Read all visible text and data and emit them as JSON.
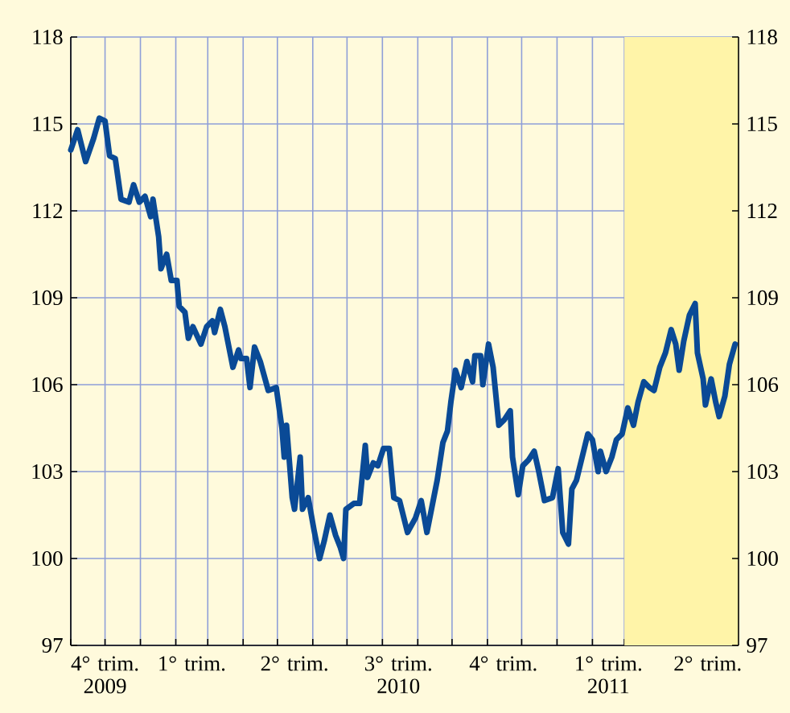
{
  "chart_data": {
    "type": "line",
    "color": "#0a4a96",
    "x": [
      "2009-11-01",
      "2009-11-07",
      "2009-11-14",
      "2009-11-21",
      "2009-11-26",
      "2009-12-01",
      "2009-12-05",
      "2009-12-10",
      "2009-12-15",
      "2009-12-22",
      "2009-12-26",
      "2009-12-31",
      "2010-01-05",
      "2010-01-10",
      "2010-01-12",
      "2010-01-17",
      "2010-01-19",
      "2010-01-24",
      "2010-01-28",
      "2010-02-02",
      "2010-02-04",
      "2010-02-09",
      "2010-02-12",
      "2010-02-16",
      "2010-02-23",
      "2010-02-28",
      "2010-03-05",
      "2010-03-07",
      "2010-03-12",
      "2010-03-16",
      "2010-03-23",
      "2010-03-28",
      "2010-03-30",
      "2010-04-04",
      "2010-04-07",
      "2010-04-11",
      "2010-04-16",
      "2010-04-23",
      "2010-04-30",
      "2010-05-05",
      "2010-05-07",
      "2010-05-09",
      "2010-05-14",
      "2010-05-16",
      "2010-05-21",
      "2010-05-23",
      "2010-05-28",
      "2010-06-02",
      "2010-06-07",
      "2010-06-11",
      "2010-06-16",
      "2010-06-21",
      "2010-06-25",
      "2010-06-28",
      "2010-06-30",
      "2010-07-07",
      "2010-07-12",
      "2010-07-17",
      "2010-07-19",
      "2010-07-24",
      "2010-07-28",
      "2010-08-02",
      "2010-08-07",
      "2010-08-11",
      "2010-08-16",
      "2010-08-23",
      "2010-08-30",
      "2010-09-04",
      "2010-09-09",
      "2010-09-13",
      "2010-09-18",
      "2010-09-23",
      "2010-09-27",
      "2010-09-30",
      "2010-10-04",
      "2010-10-09",
      "2010-10-14",
      "2010-10-19",
      "2010-10-21",
      "2010-10-26",
      "2010-10-28",
      "2010-11-02",
      "2010-11-06",
      "2010-11-11",
      "2010-11-16",
      "2010-11-21",
      "2010-11-23",
      "2010-11-28",
      "2010-12-02",
      "2010-12-07",
      "2010-12-12",
      "2010-12-16",
      "2010-12-21",
      "2010-12-28",
      "2011-01-02",
      "2011-01-06",
      "2011-01-11",
      "2011-01-14",
      "2011-01-18",
      "2011-01-23",
      "2011-01-28",
      "2011-02-01",
      "2011-02-06",
      "2011-02-08",
      "2011-02-13",
      "2011-02-18",
      "2011-02-22",
      "2011-02-27",
      "2011-03-04",
      "2011-03-09",
      "2011-03-13",
      "2011-03-18",
      "2011-03-23",
      "2011-03-27",
      "2011-04-01",
      "2011-04-06",
      "2011-04-11",
      "2011-04-15",
      "2011-04-18",
      "2011-04-22",
      "2011-04-27",
      "2011-05-02",
      "2011-05-04",
      "2011-05-09",
      "2011-05-11",
      "2011-05-16",
      "2011-05-20",
      "2011-05-23",
      "2011-05-28",
      "2011-06-01",
      "2011-06-06"
    ],
    "values": [
      114.1,
      114.8,
      113.7,
      114.5,
      115.2,
      115.1,
      113.9,
      113.8,
      112.4,
      112.3,
      112.9,
      112.3,
      112.5,
      111.8,
      112.4,
      111.1,
      110.0,
      110.5,
      109.6,
      109.6,
      108.7,
      108.5,
      107.6,
      108.0,
      107.4,
      108.0,
      108.2,
      107.8,
      108.6,
      108.0,
      106.6,
      107.2,
      106.9,
      106.9,
      105.9,
      107.3,
      106.8,
      105.8,
      105.9,
      104.5,
      103.5,
      104.6,
      102.1,
      101.7,
      103.5,
      101.7,
      102.1,
      101.0,
      100.0,
      100.6,
      101.5,
      100.8,
      100.4,
      100.0,
      101.7,
      101.9,
      101.9,
      103.9,
      102.8,
      103.3,
      103.2,
      103.8,
      103.8,
      102.1,
      102.0,
      100.9,
      101.4,
      102.0,
      100.9,
      101.7,
      102.7,
      104.0,
      104.4,
      105.4,
      106.5,
      105.9,
      106.8,
      106.1,
      107.0,
      107.0,
      106.0,
      107.4,
      106.6,
      104.6,
      104.8,
      105.1,
      103.5,
      102.2,
      103.2,
      103.4,
      103.7,
      103.0,
      102.0,
      102.1,
      103.1,
      100.9,
      100.5,
      102.4,
      102.7,
      103.5,
      104.3,
      104.1,
      103.0,
      103.7,
      103.0,
      103.5,
      104.1,
      104.3,
      105.2,
      104.6,
      105.4,
      106.1,
      105.9,
      105.8,
      106.6,
      107.1,
      107.9,
      107.4,
      106.5,
      107.5,
      108.4,
      108.8,
      107.1,
      106.2,
      105.3,
      106.2,
      105.4,
      104.9,
      105.6,
      106.7,
      107.4
    ],
    "xlim": [
      "2009-11-01",
      "2011-06-09"
    ],
    "xticks": [
      {
        "value": "2009-11-01",
        "label": null
      },
      {
        "value": "2009-12-01",
        "label": null
      },
      {
        "value": "2010-01-01",
        "label": null
      },
      {
        "value": "2010-02-01",
        "label": null
      },
      {
        "value": "2010-03-01",
        "label": null
      },
      {
        "value": "2010-04-01",
        "label": null
      },
      {
        "value": "2010-05-01",
        "label": null
      },
      {
        "value": "2010-06-01",
        "label": null
      },
      {
        "value": "2010-07-01",
        "label": null
      },
      {
        "value": "2010-08-01",
        "label": null
      },
      {
        "value": "2010-09-01",
        "label": null
      },
      {
        "value": "2010-10-01",
        "label": null
      },
      {
        "value": "2010-11-01",
        "label": null
      },
      {
        "value": "2010-12-01",
        "label": null
      },
      {
        "value": "2011-01-01",
        "label": null
      },
      {
        "value": "2011-02-01",
        "label": null
      },
      {
        "value": "2011-03-01",
        "label": null
      },
      {
        "value": "2011-04-01",
        "label": null
      },
      {
        "value": "2011-05-01",
        "label": null
      },
      {
        "value": "2011-06-01",
        "label": null
      },
      {
        "value": "2009-12-01",
        "label": "4° trim.\n2009"
      },
      {
        "value": "2010-02-15",
        "label": "1° trim."
      },
      {
        "value": "2010-05-16",
        "label": "2° trim."
      },
      {
        "value": "2010-08-15",
        "label": "3° trim.\n2010"
      },
      {
        "value": "2010-11-15",
        "label": "4° trim."
      },
      {
        "value": "2011-02-15",
        "label": "1° trim.\n2011"
      },
      {
        "value": "2011-05-13",
        "label": "2° trim."
      }
    ],
    "ylim": [
      97,
      118
    ],
    "yticks": [
      97,
      100,
      103,
      106,
      109,
      112,
      115,
      118
    ],
    "y2lim": [
      97,
      118
    ],
    "y2ticks": [
      97,
      100,
      103,
      106,
      109,
      112,
      115,
      118
    ],
    "bands": [
      {
        "axis": "x",
        "from": "2011-03-01",
        "to": "2011-06-09",
        "color": "#fff4a8"
      }
    ],
    "grid": true,
    "marker": "none",
    "line_style": "solid"
  }
}
